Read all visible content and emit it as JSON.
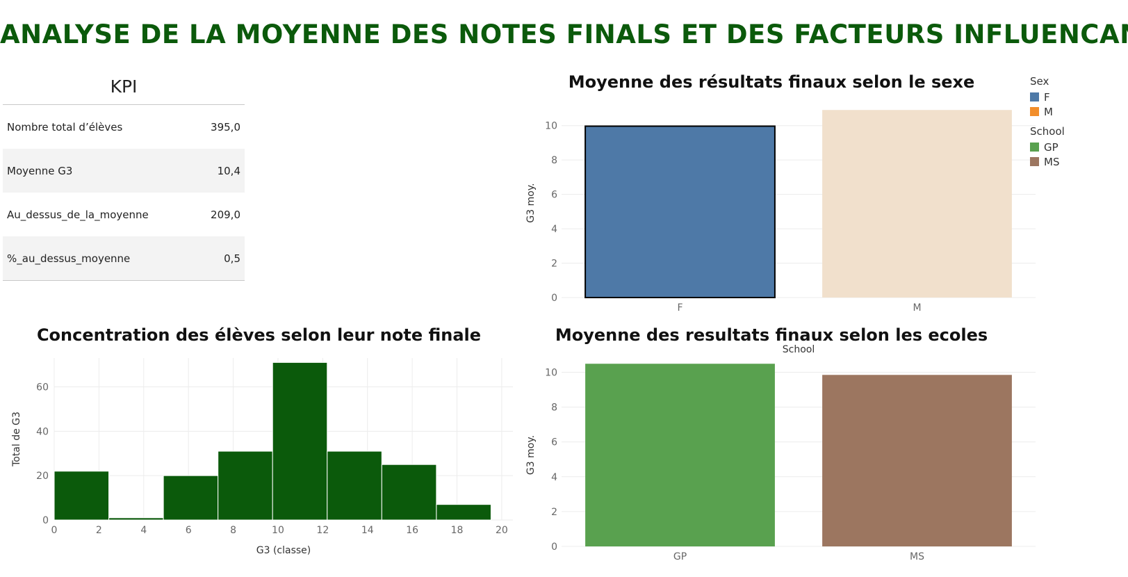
{
  "title": "ANALYSE DE LA MOYENNE DES NOTES FINALS ET DES FACTEURS INFLUENCANTS",
  "kpi": {
    "title": "KPI",
    "rows": [
      {
        "label": "Nombre total d’élèves",
        "value": "395,0"
      },
      {
        "label": "Moyenne G3",
        "value": "10,4"
      },
      {
        "label": "Au_dessus_de_la_moyenne",
        "value": "209,0"
      },
      {
        "label": "%_au_dessus_moyenne",
        "value": "0,5"
      }
    ]
  },
  "legend": {
    "sex_title": "Sex",
    "sex_items": [
      {
        "label": "F",
        "color": "#4e79a7"
      },
      {
        "label": "M",
        "color": "#f28e2b"
      }
    ],
    "school_title": "School",
    "school_items": [
      {
        "label": "GP",
        "color": "#59a14f"
      },
      {
        "label": "MS",
        "color": "#9c7660"
      }
    ]
  },
  "chart_data": [
    {
      "id": "sex",
      "type": "bar",
      "title": "Moyenne des résultats finaux selon le sexe",
      "xlabel": "",
      "ylabel": "G3 moy.",
      "categories": [
        "F",
        "M"
      ],
      "values": [
        9.97,
        10.91
      ],
      "colors": [
        "#4e79a7",
        "#f1e0cc"
      ],
      "highlighted": [
        true,
        false
      ],
      "ylim": [
        0,
        11
      ],
      "yticks": [
        0,
        2,
        4,
        6,
        8,
        10
      ],
      "grid": true
    },
    {
      "id": "hist",
      "type": "bar",
      "title": "Concentration des élèves selon leur note finale",
      "xlabel": "G3 (classe)",
      "ylabel": "Total de G3",
      "bins": [
        [
          0,
          2.44
        ],
        [
          2.44,
          4.88
        ],
        [
          4.88,
          7.32
        ],
        [
          7.32,
          9.76
        ],
        [
          9.76,
          12.2
        ],
        [
          12.2,
          14.64
        ],
        [
          14.64,
          17.08
        ],
        [
          17.08,
          19.52
        ]
      ],
      "values": [
        22,
        1,
        20,
        31,
        71,
        31,
        25,
        7
      ],
      "color": "#0b5a0b",
      "xlim": [
        0,
        20.5
      ],
      "xticks": [
        0,
        2,
        4,
        6,
        8,
        10,
        12,
        14,
        16,
        18,
        20
      ],
      "ylim": [
        0,
        73
      ],
      "yticks": [
        0,
        20,
        40,
        60
      ],
      "grid": true
    },
    {
      "id": "school",
      "type": "bar",
      "title": "Moyenne des resultats finaux selon les ecoles",
      "header": "School",
      "xlabel": "",
      "ylabel": "G3 moy.",
      "categories": [
        "GP",
        "MS"
      ],
      "values": [
        10.49,
        9.85
      ],
      "colors": [
        "#59a14f",
        "#9c7660"
      ],
      "ylim": [
        0,
        10.5
      ],
      "yticks": [
        0,
        2,
        4,
        6,
        8,
        10
      ],
      "grid": true
    }
  ]
}
